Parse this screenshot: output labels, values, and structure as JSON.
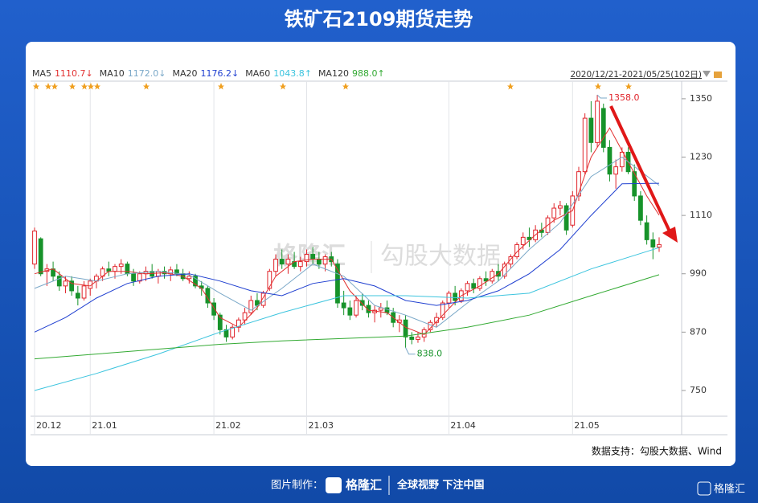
{
  "chart_data": {
    "type": "candlestick",
    "title": "铁矿石2109期货走势",
    "range_label": "2020/12/21-2021/05/25(102日)",
    "source": "数据支持：勾股大数据、Wind",
    "watermark": [
      "格隆汇",
      "勾股大数据"
    ],
    "footer": {
      "made_by": "图片制作：",
      "brand": "格隆汇",
      "slogan": "全球视野 下注中国",
      "corner": "格隆汇"
    },
    "up_color": "#e0242b",
    "down_color": "#17932a",
    "ylim": [
      702,
      1368
    ],
    "yticks": [
      750,
      870,
      990,
      1110,
      1230,
      1350
    ],
    "xlim": [
      0,
      101
    ],
    "xticks": [
      {
        "value": 0,
        "label": "20.12"
      },
      {
        "value": 9,
        "label": "21.01"
      },
      {
        "value": 29,
        "label": "21.02"
      },
      {
        "value": 44,
        "label": "21.03"
      },
      {
        "value": 67,
        "label": "21.04"
      },
      {
        "value": 87,
        "label": "21.05"
      }
    ],
    "annotations": [
      {
        "value": 1358,
        "label": "1358.0",
        "color": "#e0242b"
      },
      {
        "value": 838,
        "label": "838.0",
        "color": "#17932a"
      }
    ],
    "candles": [
      [
        1010,
        1085,
        1000,
        1078
      ],
      [
        1062,
        1065,
        985,
        990
      ],
      [
        995,
        1010,
        965,
        1000
      ],
      [
        1000,
        1015,
        975,
        985
      ],
      [
        985,
        995,
        955,
        965
      ],
      [
        965,
        985,
        950,
        975
      ],
      [
        975,
        985,
        945,
        955
      ],
      [
        950,
        965,
        925,
        940
      ],
      [
        940,
        975,
        935,
        965
      ],
      [
        960,
        980,
        945,
        975
      ],
      [
        975,
        990,
        960,
        985
      ],
      [
        985,
        1005,
        975,
        1000
      ],
      [
        1000,
        1015,
        985,
        995
      ],
      [
        995,
        1010,
        980,
        1005
      ],
      [
        1005,
        1020,
        990,
        1010
      ],
      [
        1010,
        1015,
        985,
        990
      ],
      [
        990,
        1000,
        965,
        975
      ],
      [
        975,
        995,
        970,
        990
      ],
      [
        990,
        1005,
        975,
        995
      ],
      [
        995,
        1010,
        980,
        985
      ],
      [
        985,
        1000,
        970,
        995
      ],
      [
        995,
        1005,
        980,
        990
      ],
      [
        990,
        1005,
        975,
        998
      ],
      [
        998,
        1010,
        985,
        990
      ],
      [
        990,
        1000,
        975,
        980
      ],
      [
        980,
        995,
        970,
        985
      ],
      [
        985,
        990,
        960,
        965
      ],
      [
        965,
        975,
        945,
        960
      ],
      [
        960,
        965,
        920,
        930
      ],
      [
        930,
        940,
        895,
        905
      ],
      [
        905,
        910,
        865,
        875
      ],
      [
        875,
        885,
        850,
        860
      ],
      [
        860,
        885,
        855,
        880
      ],
      [
        880,
        900,
        870,
        895
      ],
      [
        895,
        920,
        885,
        910
      ],
      [
        910,
        945,
        905,
        935
      ],
      [
        935,
        950,
        915,
        925
      ],
      [
        925,
        955,
        920,
        950
      ],
      [
        960,
        1000,
        955,
        995
      ],
      [
        995,
        1030,
        985,
        1020
      ],
      [
        1020,
        1040,
        1000,
        1010
      ],
      [
        1010,
        1030,
        990,
        1020
      ],
      [
        1015,
        1035,
        1000,
        1005
      ],
      [
        1005,
        1025,
        995,
        1015
      ],
      [
        1015,
        1040,
        1005,
        1030
      ],
      [
        1030,
        1045,
        1010,
        1020
      ],
      [
        1020,
        1035,
        1000,
        1010
      ],
      [
        1010,
        1030,
        995,
        1025
      ],
      [
        1025,
        1035,
        1005,
        1015
      ],
      [
        1010,
        1020,
        920,
        930
      ],
      [
        930,
        955,
        905,
        920
      ],
      [
        920,
        935,
        895,
        905
      ],
      [
        905,
        945,
        900,
        935
      ],
      [
        935,
        950,
        915,
        925
      ],
      [
        925,
        935,
        900,
        910
      ],
      [
        910,
        925,
        890,
        915
      ],
      [
        915,
        930,
        900,
        920
      ],
      [
        920,
        935,
        905,
        910
      ],
      [
        910,
        920,
        880,
        890
      ],
      [
        890,
        905,
        870,
        895
      ],
      [
        895,
        905,
        838,
        860
      ],
      [
        860,
        870,
        845,
        855
      ],
      [
        855,
        870,
        848,
        860
      ],
      [
        860,
        880,
        850,
        875
      ],
      [
        875,
        895,
        870,
        890
      ],
      [
        890,
        910,
        880,
        900
      ],
      [
        900,
        935,
        895,
        930
      ],
      [
        930,
        955,
        920,
        950
      ],
      [
        950,
        965,
        925,
        935
      ],
      [
        935,
        960,
        930,
        955
      ],
      [
        955,
        975,
        945,
        970
      ],
      [
        970,
        980,
        950,
        960
      ],
      [
        960,
        985,
        955,
        980
      ],
      [
        980,
        995,
        965,
        975
      ],
      [
        975,
        1000,
        970,
        995
      ],
      [
        995,
        1010,
        975,
        985
      ],
      [
        985,
        1015,
        980,
        1010
      ],
      [
        1010,
        1030,
        1000,
        1025
      ],
      [
        1025,
        1055,
        1020,
        1050
      ],
      [
        1050,
        1075,
        1040,
        1065
      ],
      [
        1065,
        1085,
        1045,
        1060
      ],
      [
        1060,
        1090,
        1055,
        1080
      ],
      [
        1080,
        1095,
        1065,
        1075
      ],
      [
        1075,
        1110,
        1070,
        1105
      ],
      [
        1105,
        1135,
        1095,
        1125
      ],
      [
        1125,
        1140,
        1110,
        1130
      ],
      [
        1130,
        1135,
        1070,
        1080
      ],
      [
        1090,
        1160,
        1085,
        1150
      ],
      [
        1150,
        1210,
        1140,
        1200
      ],
      [
        1200,
        1320,
        1195,
        1310
      ],
      [
        1310,
        1345,
        1240,
        1260
      ],
      [
        1260,
        1358,
        1250,
        1345
      ],
      [
        1330,
        1340,
        1240,
        1250
      ],
      [
        1250,
        1265,
        1180,
        1195
      ],
      [
        1195,
        1225,
        1165,
        1210
      ],
      [
        1210,
        1250,
        1200,
        1240
      ],
      [
        1240,
        1250,
        1195,
        1200
      ],
      [
        1200,
        1215,
        1140,
        1150
      ],
      [
        1150,
        1160,
        1090,
        1100
      ],
      [
        1095,
        1110,
        1050,
        1060
      ],
      [
        1060,
        1075,
        1020,
        1045
      ],
      [
        1045,
        1065,
        1035,
        1050
      ]
    ],
    "series": [
      {
        "name": "MA5",
        "color": "#e23030",
        "current": {
          "value": 1110.7,
          "label": "1110.7↓"
        },
        "x": [
          0,
          3,
          6,
          9,
          12,
          15,
          18,
          21,
          24,
          27,
          30,
          33,
          36,
          39,
          42,
          45,
          48,
          51,
          54,
          57,
          60,
          63,
          66,
          69,
          72,
          75,
          78,
          81,
          84,
          87,
          90,
          93,
          96,
          99,
          101
        ],
        "values": [
          990,
          1000,
          970,
          965,
          995,
          995,
          990,
          992,
          985,
          960,
          900,
          880,
          920,
          985,
          1015,
          1020,
          1020,
          955,
          915,
          910,
          880,
          865,
          905,
          945,
          965,
          990,
          1035,
          1070,
          1100,
          1120,
          1230,
          1290,
          1220,
          1150,
          1110.7
        ]
      },
      {
        "name": "MA10",
        "color": "#7aa8c8",
        "current": {
          "value": 1172.0,
          "label": "1172.0↓"
        },
        "x": [
          0,
          5,
          10,
          15,
          20,
          25,
          30,
          35,
          40,
          45,
          50,
          55,
          60,
          65,
          70,
          75,
          80,
          85,
          90,
          95,
          101
        ],
        "values": [
          960,
          985,
          975,
          990,
          995,
          988,
          950,
          915,
          960,
          1010,
          985,
          925,
          905,
          880,
          930,
          975,
          1040,
          1095,
          1190,
          1230,
          1172
        ]
      },
      {
        "name": "MA20",
        "color": "#1f3fd0",
        "current": {
          "value": 1176.2,
          "label": "1176.2↓"
        },
        "x": [
          0,
          5,
          10,
          15,
          20,
          25,
          30,
          35,
          40,
          45,
          50,
          55,
          60,
          65,
          70,
          75,
          80,
          85,
          90,
          95,
          101
        ],
        "values": [
          870,
          900,
          940,
          970,
          985,
          990,
          975,
          955,
          945,
          970,
          980,
          965,
          935,
          925,
          935,
          955,
          990,
          1040,
          1110,
          1175,
          1176.2
        ]
      },
      {
        "name": "MA60",
        "color": "#3cc4de",
        "current": {
          "value": 1043.8,
          "label": "1043.8↑"
        },
        "x": [
          0,
          10,
          20,
          30,
          40,
          50,
          60,
          70,
          80,
          90,
          101
        ],
        "values": [
          750,
          785,
          825,
          870,
          910,
          945,
          945,
          940,
          950,
          1000,
          1043.8
        ]
      },
      {
        "name": "MA120",
        "color": "#33aa33",
        "current": {
          "value": 988.0,
          "label": "988.0↑"
        },
        "x": [
          0,
          10,
          20,
          30,
          40,
          50,
          60,
          70,
          80,
          90,
          101
        ],
        "values": [
          815,
          825,
          835,
          845,
          852,
          857,
          862,
          880,
          905,
          945,
          988
        ]
      }
    ]
  }
}
